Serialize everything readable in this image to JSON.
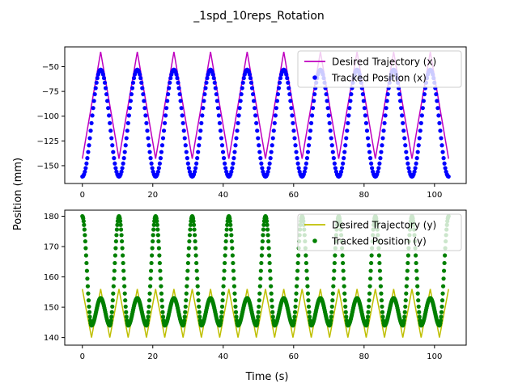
{
  "figure": {
    "title": "_1spd_10reps_Rotation",
    "ylabel": "Position (mm)",
    "xlabel": "Time (s)"
  },
  "chart_data": [
    {
      "type": "line",
      "panel": "top",
      "xlim": [
        -5,
        109
      ],
      "ylim": [
        -168,
        -30
      ],
      "xticks": [
        0,
        20,
        40,
        60,
        80,
        100
      ],
      "yticks": [
        -150,
        -125,
        -100,
        -75,
        -50
      ],
      "legend_position": "top-right",
      "series": [
        {
          "name": "Desired Trajectory (x)",
          "style": "line",
          "color": "#bf00bf",
          "x": [
            0,
            5.2,
            10.4,
            15.6,
            20.8,
            26.0,
            31.2,
            36.4,
            41.6,
            46.8,
            52.0,
            57.2,
            62.4,
            67.6,
            72.8,
            78.0,
            83.2,
            88.4,
            93.6,
            98.8,
            104
          ],
          "y": [
            -143,
            -35,
            -143,
            -35,
            -143,
            -35,
            -143,
            -35,
            -143,
            -35,
            -143,
            -35,
            -143,
            -35,
            -143,
            -35,
            -143,
            -35,
            -143,
            -35,
            -143
          ]
        },
        {
          "name": "Tracked Position (x)",
          "style": "markers",
          "color": "#0000ff",
          "x": [
            0,
            5.2,
            10.4,
            15.6,
            20.8,
            26.0,
            31.2,
            36.4,
            41.6,
            46.8,
            52.0,
            57.2,
            62.4,
            67.6,
            72.8,
            78.0,
            83.2,
            88.4,
            93.6,
            98.8,
            104
          ],
          "y": [
            -161,
            -53,
            -161,
            -53,
            -161,
            -53,
            -161,
            -53,
            -161,
            -53,
            -161,
            -53,
            -161,
            -53,
            -161,
            -53,
            -161,
            -53,
            -161,
            -53,
            -161
          ]
        }
      ]
    },
    {
      "type": "line",
      "panel": "bottom",
      "xlim": [
        -5,
        109
      ],
      "ylim": [
        137.5,
        182
      ],
      "xticks": [
        0,
        20,
        40,
        60,
        80,
        100
      ],
      "yticks": [
        140,
        150,
        160,
        170,
        180
      ],
      "legend_position": "top-right",
      "series": [
        {
          "name": "Desired Trajectory (y)",
          "style": "line",
          "color": "#bfbf00",
          "x": [
            0,
            2.6,
            5.2,
            7.8,
            10.4,
            13.0,
            15.6,
            18.2,
            20.8,
            23.4,
            26.0,
            28.6,
            31.2,
            33.8,
            36.4,
            39.0,
            41.6,
            44.2,
            46.8,
            49.4,
            52.0,
            54.6,
            57.2,
            59.8,
            62.4,
            65.0,
            67.6,
            70.2,
            72.8,
            75.4,
            78.0,
            80.6,
            83.2,
            85.8,
            88.4,
            91.0,
            93.6,
            96.2,
            98.8,
            101.4,
            104
          ],
          "y": [
            156,
            140,
            156,
            140,
            156,
            140,
            156,
            140,
            156,
            140,
            156,
            140,
            156,
            140,
            156,
            140,
            156,
            140,
            156,
            140,
            156,
            140,
            156,
            140,
            156,
            140,
            156,
            140,
            156,
            140,
            156,
            140,
            156,
            140,
            156,
            140,
            156,
            140,
            156,
            140,
            156
          ]
        },
        {
          "name": "Tracked Position (y)",
          "style": "markers",
          "color": "#008000",
          "x": [
            0,
            2.6,
            5.2,
            7.8,
            10.4,
            13.0,
            15.6,
            18.2,
            20.8,
            23.4,
            26.0,
            28.6,
            31.2,
            33.8,
            36.4,
            39.0,
            41.6,
            44.2,
            46.8,
            49.4,
            52.0,
            54.6,
            57.2,
            59.8,
            62.4,
            65.0,
            67.6,
            70.2,
            72.8,
            75.4,
            78.0,
            80.6,
            83.2,
            85.8,
            88.4,
            91.0,
            93.6,
            96.2,
            98.8,
            101.4,
            104
          ],
          "y": [
            180,
            144,
            153,
            144,
            180,
            144,
            153,
            144,
            180,
            144,
            153,
            144,
            180,
            144,
            153,
            144,
            180,
            144,
            153,
            144,
            180,
            144,
            153,
            144,
            180,
            144,
            153,
            144,
            180,
            144,
            153,
            144,
            180,
            144,
            153,
            144,
            180,
            144,
            153,
            144,
            180
          ]
        }
      ]
    }
  ]
}
